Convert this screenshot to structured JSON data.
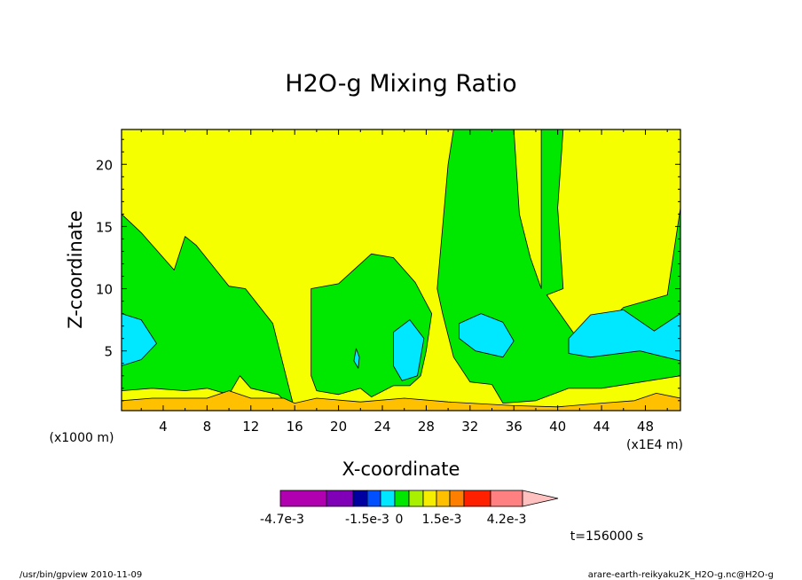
{
  "chart_data": {
    "type": "contour",
    "title": "H2O-g Mixing Ratio",
    "xlabel": "X-coordinate",
    "ylabel": "Z-coordinate",
    "x_unit_note": "(x1E4 m)",
    "y_unit_note": "(x1000 m)",
    "xlim": [
      0.2,
      51.2
    ],
    "ylim": [
      0.2,
      22.8
    ],
    "x_ticks": [
      "4",
      "8",
      "12",
      "16",
      "20",
      "24",
      "28",
      "32",
      "36",
      "40",
      "44",
      "48"
    ],
    "y_ticks": [
      "5",
      "10",
      "15",
      "20"
    ],
    "legend_labels": [
      "-4.7e-3",
      "-1.5e-3",
      "0",
      "1.5e-3",
      "4.2e-3"
    ],
    "colorbar_colors": [
      "#b000b0",
      "#8000b8",
      "#0000a0",
      "#0050ff",
      "#00e8ff",
      "#00e800",
      "#a8f000",
      "#f5ee00",
      "#ffc000",
      "#ff8000",
      "#ff2000",
      "#ff8080",
      "#ffc0c0"
    ],
    "regions": {
      "green": [
        [
          [
            0.2,
            16
          ],
          [
            2,
            14.5
          ],
          [
            5,
            11.5
          ],
          [
            6,
            14.2
          ],
          [
            7,
            13.5
          ],
          [
            10,
            10.2
          ],
          [
            11.5,
            10
          ],
          [
            14,
            7.2
          ],
          [
            16,
            0.2
          ],
          [
            14.5,
            1.5
          ],
          [
            12,
            2
          ],
          [
            11,
            3
          ],
          [
            10,
            1.5
          ],
          [
            8,
            2
          ],
          [
            6,
            1.8
          ],
          [
            3,
            2
          ],
          [
            0.2,
            1.8
          ]
        ],
        [
          [
            17.5,
            10
          ],
          [
            20,
            10.4
          ],
          [
            23,
            12.8
          ],
          [
            25,
            12.5
          ],
          [
            27,
            10.5
          ],
          [
            28.5,
            8
          ],
          [
            28,
            5
          ],
          [
            27.5,
            3
          ],
          [
            26.5,
            2.2
          ],
          [
            25,
            2.2
          ],
          [
            23,
            1.3
          ],
          [
            22,
            2
          ],
          [
            20,
            1.5
          ],
          [
            18,
            1.8
          ],
          [
            17.5,
            3
          ]
        ],
        [
          [
            29,
            10
          ],
          [
            30,
            20
          ],
          [
            30.5,
            22.8
          ],
          [
            36,
            22.8
          ],
          [
            36.5,
            16
          ],
          [
            37.5,
            12.5
          ],
          [
            38.5,
            10
          ],
          [
            38.5,
            22.8
          ],
          [
            40.5,
            22.8
          ],
          [
            40,
            16.5
          ],
          [
            40.5,
            10
          ],
          [
            39,
            9.5
          ],
          [
            43,
            4.5
          ],
          [
            44.5,
            7.2
          ],
          [
            46,
            8.5
          ],
          [
            50,
            9.5
          ],
          [
            51.2,
            16.5
          ],
          [
            51.2,
            3
          ],
          [
            44,
            2
          ],
          [
            41,
            2
          ],
          [
            38,
            1
          ],
          [
            35,
            0.8
          ],
          [
            34,
            2.3
          ],
          [
            32,
            2.5
          ],
          [
            30.5,
            4.5
          ],
          [
            29.5,
            8
          ]
        ]
      ],
      "cyan": [
        [
          [
            0.2,
            8
          ],
          [
            2,
            7.5
          ],
          [
            3.4,
            5.6
          ],
          [
            2,
            4.3
          ],
          [
            0.2,
            3.8
          ]
        ],
        [
          [
            21.6,
            5.2
          ],
          [
            21.9,
            4.5
          ],
          [
            21.8,
            3.6
          ],
          [
            21.4,
            4.2
          ]
        ],
        [
          [
            25,
            6.5
          ],
          [
            26.5,
            7.5
          ],
          [
            27.8,
            6
          ],
          [
            27.2,
            3
          ],
          [
            25.8,
            2.6
          ],
          [
            25,
            3.8
          ]
        ],
        [
          [
            31,
            7.2
          ],
          [
            33,
            8
          ],
          [
            35,
            7.3
          ],
          [
            36,
            5.8
          ],
          [
            35,
            4.5
          ],
          [
            32.5,
            5
          ],
          [
            31,
            6
          ]
        ],
        [
          [
            41,
            6
          ],
          [
            43,
            7.9
          ],
          [
            46,
            8.3
          ],
          [
            48.8,
            6.6
          ],
          [
            51.2,
            8
          ],
          [
            51.2,
            4.2
          ],
          [
            47.5,
            5
          ],
          [
            43,
            4.5
          ],
          [
            41,
            4.8
          ]
        ]
      ],
      "orange": [
        [
          [
            0.2,
            0.2
          ],
          [
            0.2,
            1
          ],
          [
            3,
            1.2
          ],
          [
            8,
            1.2
          ],
          [
            10,
            1.8
          ],
          [
            12,
            1.2
          ],
          [
            15,
            1.2
          ],
          [
            16,
            0.8
          ],
          [
            18,
            1.2
          ],
          [
            22,
            0.9
          ],
          [
            26,
            1.2
          ],
          [
            30,
            0.9
          ],
          [
            36,
            0.6
          ],
          [
            40,
            0.5
          ],
          [
            44,
            0.8
          ],
          [
            47,
            1
          ],
          [
            49,
            1.6
          ],
          [
            51.2,
            1.2
          ],
          [
            51.2,
            0.2
          ]
        ]
      ]
    }
  },
  "timestamp": "t=156000 s",
  "footer_left": "/usr/bin/gpview  2010-11-09",
  "footer_right": "arare-earth-reikyaku2K_H2O-g.nc@H2O-g",
  "colors": {
    "background": "#f5ff00",
    "green": "#00e800",
    "cyan": "#00e8ff",
    "orange": "#ffc000"
  }
}
